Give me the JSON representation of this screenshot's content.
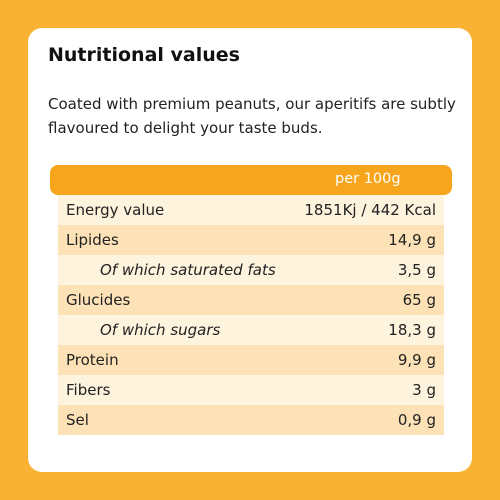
{
  "header": {
    "title": "Nutritional values",
    "description": "Coated with premium peanuts, our aperitifs are subtly flavoured to delight your taste buds."
  },
  "table": {
    "column": "per 100g",
    "rows": [
      {
        "label": "Energy value",
        "value": "1851Kj / 442 Kcal",
        "sub": false
      },
      {
        "label": "Lipides",
        "value": "14,9 g",
        "sub": false
      },
      {
        "label": "Of which saturated fats",
        "value": "3,5 g",
        "sub": true
      },
      {
        "label": "Glucides",
        "value": "65 g",
        "sub": false
      },
      {
        "label": "Of which sugars",
        "value": "18,3 g",
        "sub": true
      },
      {
        "label": "Protein",
        "value": "9,9 g",
        "sub": false
      },
      {
        "label": "Fibers",
        "value": "3 g",
        "sub": false
      },
      {
        "label": "Sel",
        "value": "0,9 g",
        "sub": false
      }
    ]
  }
}
